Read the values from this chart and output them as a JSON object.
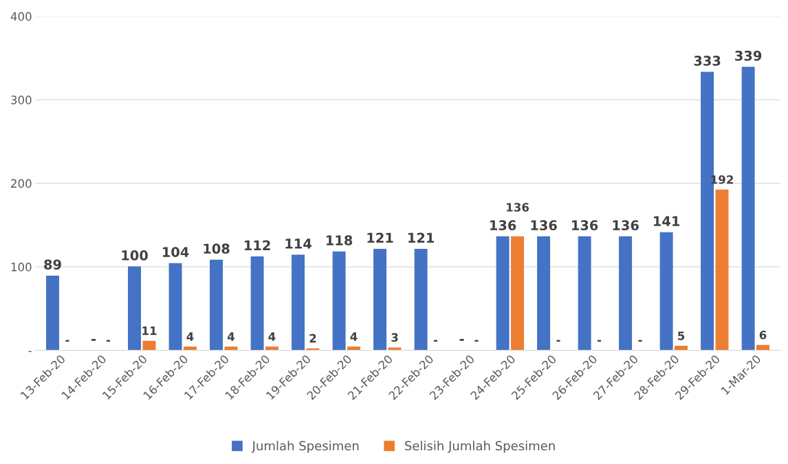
{
  "chart_data": {
    "type": "bar",
    "categories": [
      "13-Feb-20",
      "14-Feb-20",
      "15-Feb-20",
      "16-Feb-20",
      "17-Feb-20",
      "18-Feb-20",
      "19-Feb-20",
      "20-Feb-20",
      "21-Feb-20",
      "22-Feb-20",
      "23-Feb-20",
      "24-Feb-20",
      "25-Feb-20",
      "26-Feb-20",
      "27-Feb-20",
      "28-Feb-20",
      "29-Feb-20",
      "1-Mar-20"
    ],
    "series": [
      {
        "name": "Jumlah Spesimen",
        "color": "#4472c4",
        "values": [
          89,
          0,
          100,
          104,
          108,
          112,
          114,
          118,
          121,
          121,
          0,
          136,
          136,
          136,
          136,
          141,
          333,
          339
        ],
        "value_labels": [
          "89",
          "-",
          "100",
          "104",
          "108",
          "112",
          "114",
          "118",
          "121",
          "121",
          "-",
          "136",
          "136",
          "136",
          "136",
          "141",
          "333",
          "339"
        ]
      },
      {
        "name": "Selisih Jumlah Spesimen",
        "color": "#ed7d31",
        "values": [
          0,
          0,
          11,
          4,
          4,
          4,
          2,
          4,
          3,
          0,
          0,
          136,
          0,
          0,
          0,
          5,
          192,
          6
        ],
        "value_labels": [
          "-",
          "-",
          "11",
          "4",
          "4",
          "4",
          "2",
          "4",
          "3",
          "-",
          "-",
          "136",
          "-",
          "-",
          "-",
          "5",
          "192",
          "6"
        ]
      }
    ],
    "ylim": [
      0,
      400
    ],
    "yticks": [
      {
        "value": 0,
        "label": "-"
      },
      100,
      200,
      300,
      400
    ],
    "grid": "y",
    "legend": "bottom"
  }
}
